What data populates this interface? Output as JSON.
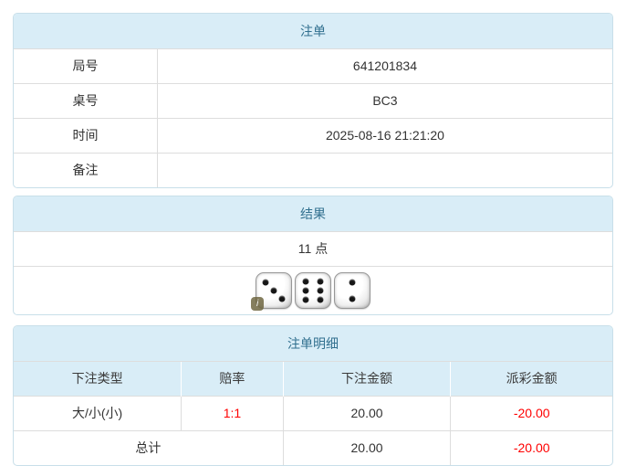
{
  "colors": {
    "heading_bg": "#d9edf7",
    "heading_text": "#31708f",
    "panel_border": "#c8dfe9",
    "row_divider": "#dddddd",
    "body_text": "#333333",
    "negative_text": "#ff0000"
  },
  "order_panel": {
    "title": "注单",
    "rows": [
      {
        "label": "局号",
        "value": "641201834"
      },
      {
        "label": "桌号",
        "value": "BC3"
      },
      {
        "label": "时间",
        "value": "2025-08-16 21:21:20"
      },
      {
        "label": "备注",
        "value": ""
      }
    ]
  },
  "result_panel": {
    "title": "结果",
    "points": "11 点",
    "dice": [
      {
        "value": 3,
        "badge": "i"
      },
      {
        "value": 6
      },
      {
        "value": 2
      }
    ]
  },
  "detail_panel": {
    "title": "注单明细",
    "headers": [
      "下注类型",
      "赔率",
      "下注金额",
      "派彩金额"
    ],
    "rows": [
      {
        "bet_type": "大/小(小)",
        "odds": "1:1",
        "bet_amount": "20.00",
        "payout": "-20.00"
      }
    ],
    "total": {
      "label": "总计",
      "bet_amount": "20.00",
      "payout": "-20.00"
    }
  }
}
